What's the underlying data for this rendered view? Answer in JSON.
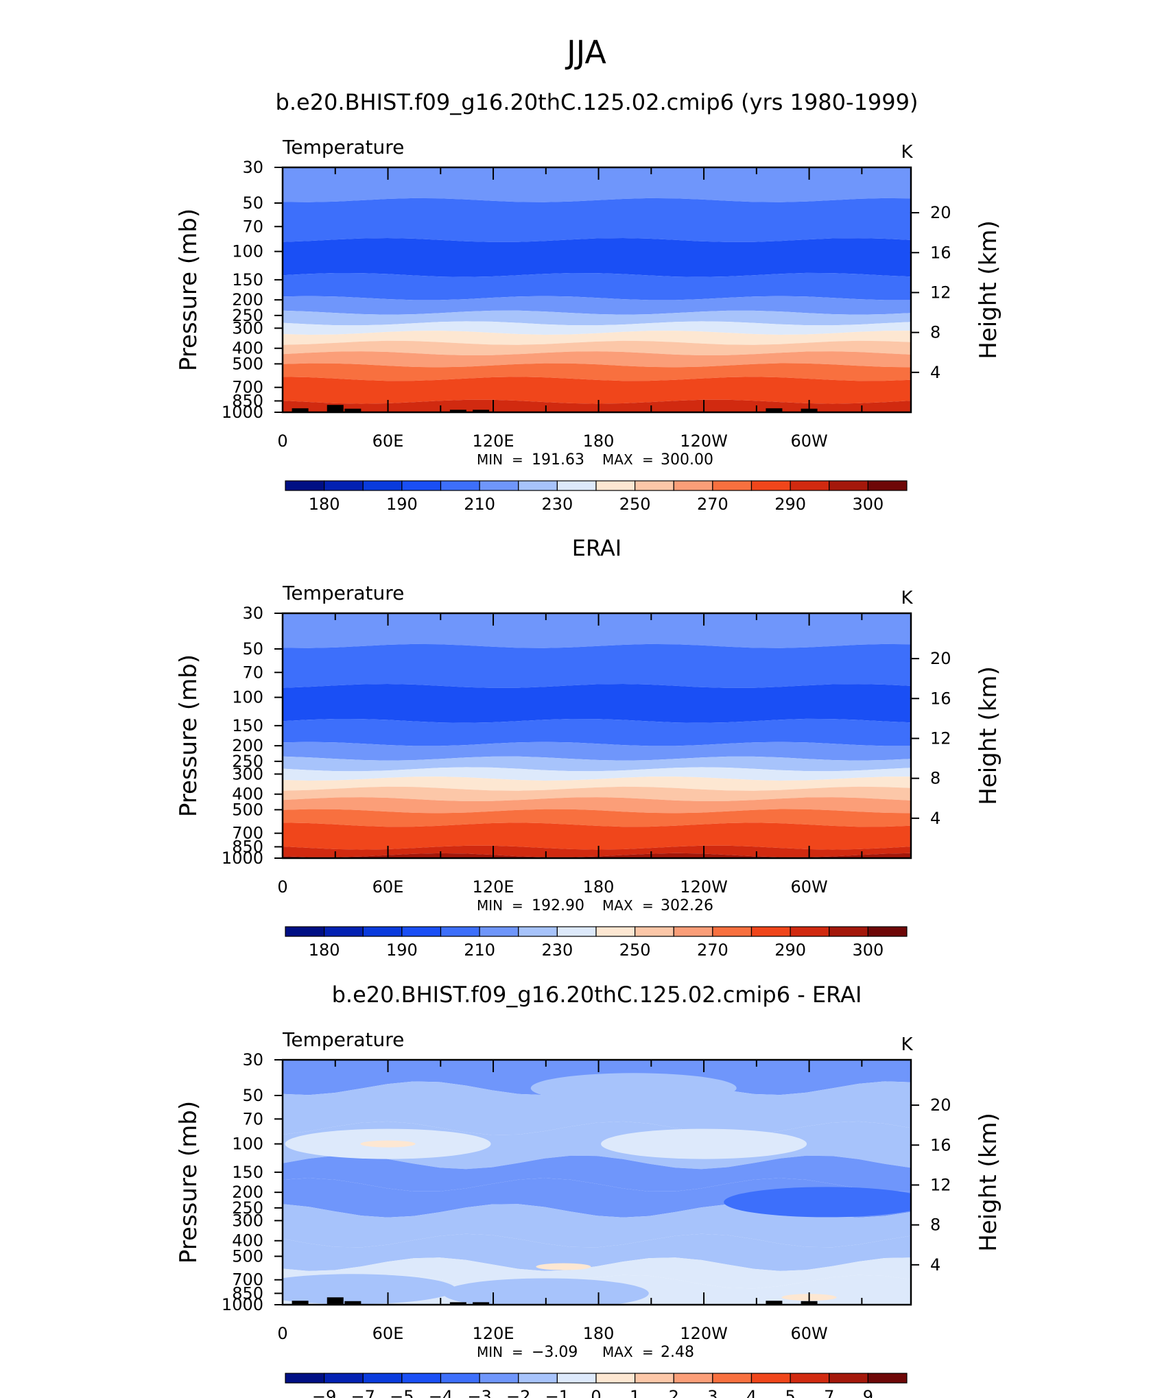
{
  "page_title": "JJA",
  "colors": {
    "temp_scale": [
      "#000f84",
      "#0321b2",
      "#0a3bdd",
      "#1a4ff5",
      "#3d6ffb",
      "#6f96fb",
      "#a7c3fb",
      "#dde9fb",
      "#fde7d2",
      "#fcc7a8",
      "#fb9e78",
      "#f8703f",
      "#f0461b",
      "#d12a10",
      "#a4180b",
      "#6e0707"
    ],
    "diff_scale": [
      "#000f84",
      "#0321b2",
      "#0a3bdd",
      "#1a4ff5",
      "#3d6ffb",
      "#6f96fb",
      "#a7c3fb",
      "#dde9fb",
      "#fde7d2",
      "#fcc7a8",
      "#fb9e78",
      "#f8703f",
      "#f0461b",
      "#d12a10",
      "#a4180b",
      "#6e0707"
    ],
    "topography": "#000000"
  },
  "chart_data": [
    {
      "type": "contour",
      "title": "b.e20.BHIST.f09_g16.20thC.125.02.cmip6 (yrs 1980-1999)",
      "variable_label": "Temperature",
      "units_label": "K",
      "ylabel": "Pressure (mb)",
      "ylabel_right": "Height (km)",
      "x_ticks": [
        "0",
        "60E",
        "120E",
        "180",
        "120W",
        "60W"
      ],
      "x_tick_values": [
        0,
        60,
        120,
        180,
        240,
        300
      ],
      "xlim": [
        0,
        358
      ],
      "y_ticks": [
        "30",
        "50",
        "70",
        "100",
        "150",
        "200",
        "250",
        "300",
        "400",
        "500",
        "700",
        "850",
        "1000"
      ],
      "y_tick_values": [
        30,
        50,
        70,
        100,
        150,
        200,
        250,
        300,
        400,
        500,
        700,
        850,
        1000
      ],
      "ylim": [
        30,
        1000
      ],
      "height_ticks": [
        "20",
        "16",
        "12",
        "8",
        "4"
      ],
      "height_tick_values": [
        20,
        16,
        12,
        8,
        4
      ],
      "min_label": "MIN",
      "min_value": "191.63",
      "max_label": "MAX",
      "max_value": "300.00",
      "colorbar_labels": [
        "180",
        "190",
        "210",
        "230",
        "250",
        "270",
        "290",
        "300"
      ],
      "bands": [
        {
          "p_top": 30,
          "p_bot": 48,
          "level": 5
        },
        {
          "p_top": 48,
          "p_bot": 85,
          "level": 4
        },
        {
          "p_top": 85,
          "p_bot": 140,
          "level": 3
        },
        {
          "p_top": 140,
          "p_bot": 195,
          "level": 4
        },
        {
          "p_top": 195,
          "p_bot": 240,
          "level": 5
        },
        {
          "p_top": 240,
          "p_bot": 280,
          "level": 6
        },
        {
          "p_top": 280,
          "p_bot": 320,
          "level": 7
        },
        {
          "p_top": 320,
          "p_bot": 370,
          "level": 8
        },
        {
          "p_top": 370,
          "p_bot": 430,
          "level": 9
        },
        {
          "p_top": 430,
          "p_bot": 510,
          "level": 10
        },
        {
          "p_top": 510,
          "p_bot": 620,
          "level": 11
        },
        {
          "p_top": 620,
          "p_bot": 860,
          "level": 12
        },
        {
          "p_top": 860,
          "p_bot": 1000,
          "level": 13
        }
      ],
      "topography": [
        [
          10,
          945
        ],
        [
          30,
          900
        ],
        [
          40,
          950
        ],
        [
          100,
          965
        ],
        [
          113,
          965
        ],
        [
          280,
          945
        ],
        [
          300,
          950
        ]
      ]
    },
    {
      "type": "contour",
      "title": "ERAI",
      "variable_label": "Temperature",
      "units_label": "K",
      "ylabel": "Pressure (mb)",
      "ylabel_right": "Height (km)",
      "x_ticks": [
        "0",
        "60E",
        "120E",
        "180",
        "120W",
        "60W"
      ],
      "x_tick_values": [
        0,
        60,
        120,
        180,
        240,
        300
      ],
      "xlim": [
        0,
        358
      ],
      "y_ticks": [
        "30",
        "50",
        "70",
        "100",
        "150",
        "200",
        "250",
        "300",
        "400",
        "500",
        "700",
        "850",
        "1000"
      ],
      "y_tick_values": [
        30,
        50,
        70,
        100,
        150,
        200,
        250,
        300,
        400,
        500,
        700,
        850,
        1000
      ],
      "ylim": [
        30,
        1000
      ],
      "height_ticks": [
        "20",
        "16",
        "12",
        "8",
        "4"
      ],
      "height_tick_values": [
        20,
        16,
        12,
        8,
        4
      ],
      "min_label": "MIN",
      "min_value": "192.90",
      "max_label": "MAX",
      "max_value": "302.26",
      "colorbar_labels": [
        "180",
        "190",
        "210",
        "230",
        "250",
        "270",
        "290",
        "300"
      ],
      "bands": [
        {
          "p_top": 30,
          "p_bot": 48,
          "level": 5
        },
        {
          "p_top": 48,
          "p_bot": 85,
          "level": 4
        },
        {
          "p_top": 85,
          "p_bot": 140,
          "level": 3
        },
        {
          "p_top": 140,
          "p_bot": 195,
          "level": 4
        },
        {
          "p_top": 195,
          "p_bot": 240,
          "level": 5
        },
        {
          "p_top": 240,
          "p_bot": 280,
          "level": 6
        },
        {
          "p_top": 280,
          "p_bot": 320,
          "level": 7
        },
        {
          "p_top": 320,
          "p_bot": 370,
          "level": 8
        },
        {
          "p_top": 370,
          "p_bot": 430,
          "level": 9
        },
        {
          "p_top": 430,
          "p_bot": 510,
          "level": 10
        },
        {
          "p_top": 510,
          "p_bot": 620,
          "level": 11
        },
        {
          "p_top": 620,
          "p_bot": 860,
          "level": 12
        },
        {
          "p_top": 860,
          "p_bot": 960,
          "level": 13
        },
        {
          "p_top": 960,
          "p_bot": 1000,
          "level": 14
        }
      ],
      "topography": []
    },
    {
      "type": "contour",
      "title": "b.e20.BHIST.f09_g16.20thC.125.02.cmip6 - ERAI",
      "variable_label": "Temperature",
      "units_label": "K",
      "ylabel": "Pressure (mb)",
      "ylabel_right": "Height (km)",
      "x_ticks": [
        "0",
        "60E",
        "120E",
        "180",
        "120W",
        "60W"
      ],
      "x_tick_values": [
        0,
        60,
        120,
        180,
        240,
        300
      ],
      "xlim": [
        0,
        358
      ],
      "y_ticks": [
        "30",
        "50",
        "70",
        "100",
        "150",
        "200",
        "250",
        "300",
        "400",
        "500",
        "700",
        "850",
        "1000"
      ],
      "y_tick_values": [
        30,
        50,
        70,
        100,
        150,
        200,
        250,
        300,
        400,
        500,
        700,
        850,
        1000
      ],
      "ylim": [
        30,
        1000
      ],
      "height_ticks": [
        "20",
        "16",
        "12",
        "8",
        "4"
      ],
      "height_tick_values": [
        20,
        16,
        12,
        8,
        4
      ],
      "min_label": "MIN",
      "min_value": "−3.09",
      "max_label": "MAX",
      "max_value": "2.48",
      "colorbar_labels": [
        "−9",
        "−7",
        "−5",
        "−4",
        "−3",
        "−2",
        "−1",
        "0",
        "1",
        "2",
        "3",
        "4",
        "5",
        "7",
        "9"
      ],
      "bands": [
        {
          "p_top": 30,
          "p_bot": 45,
          "level": 5
        },
        {
          "p_top": 45,
          "p_bot": 80,
          "level": 6
        },
        {
          "p_top": 80,
          "p_bot": 130,
          "level": 6
        },
        {
          "p_top": 130,
          "p_bot": 180,
          "level": 5
        },
        {
          "p_top": 180,
          "p_bot": 260,
          "level": 5
        },
        {
          "p_top": 260,
          "p_bot": 400,
          "level": 6
        },
        {
          "p_top": 400,
          "p_bot": 560,
          "level": 6
        },
        {
          "p_top": 560,
          "p_bot": 720,
          "level": 7
        },
        {
          "p_top": 720,
          "p_bot": 1000,
          "level": 7
        }
      ],
      "blobs": [
        {
          "lon": 60,
          "p": 100,
          "level": 7
        },
        {
          "lon": 240,
          "p": 100,
          "level": 7
        },
        {
          "lon": 200,
          "p": 45,
          "level": 6
        },
        {
          "lon": 310,
          "p": 230,
          "level": 4
        },
        {
          "lon": 40,
          "p": 800,
          "level": 6
        },
        {
          "lon": 150,
          "p": 850,
          "level": 6
        }
      ],
      "warm_spots": [
        {
          "lon": 60,
          "p": 100
        },
        {
          "lon": 160,
          "p": 580
        },
        {
          "lon": 300,
          "p": 900
        }
      ],
      "topography": [
        [
          10,
          945
        ],
        [
          30,
          900
        ],
        [
          40,
          950
        ],
        [
          100,
          965
        ],
        [
          113,
          965
        ],
        [
          280,
          945
        ],
        [
          300,
          950
        ]
      ]
    }
  ]
}
